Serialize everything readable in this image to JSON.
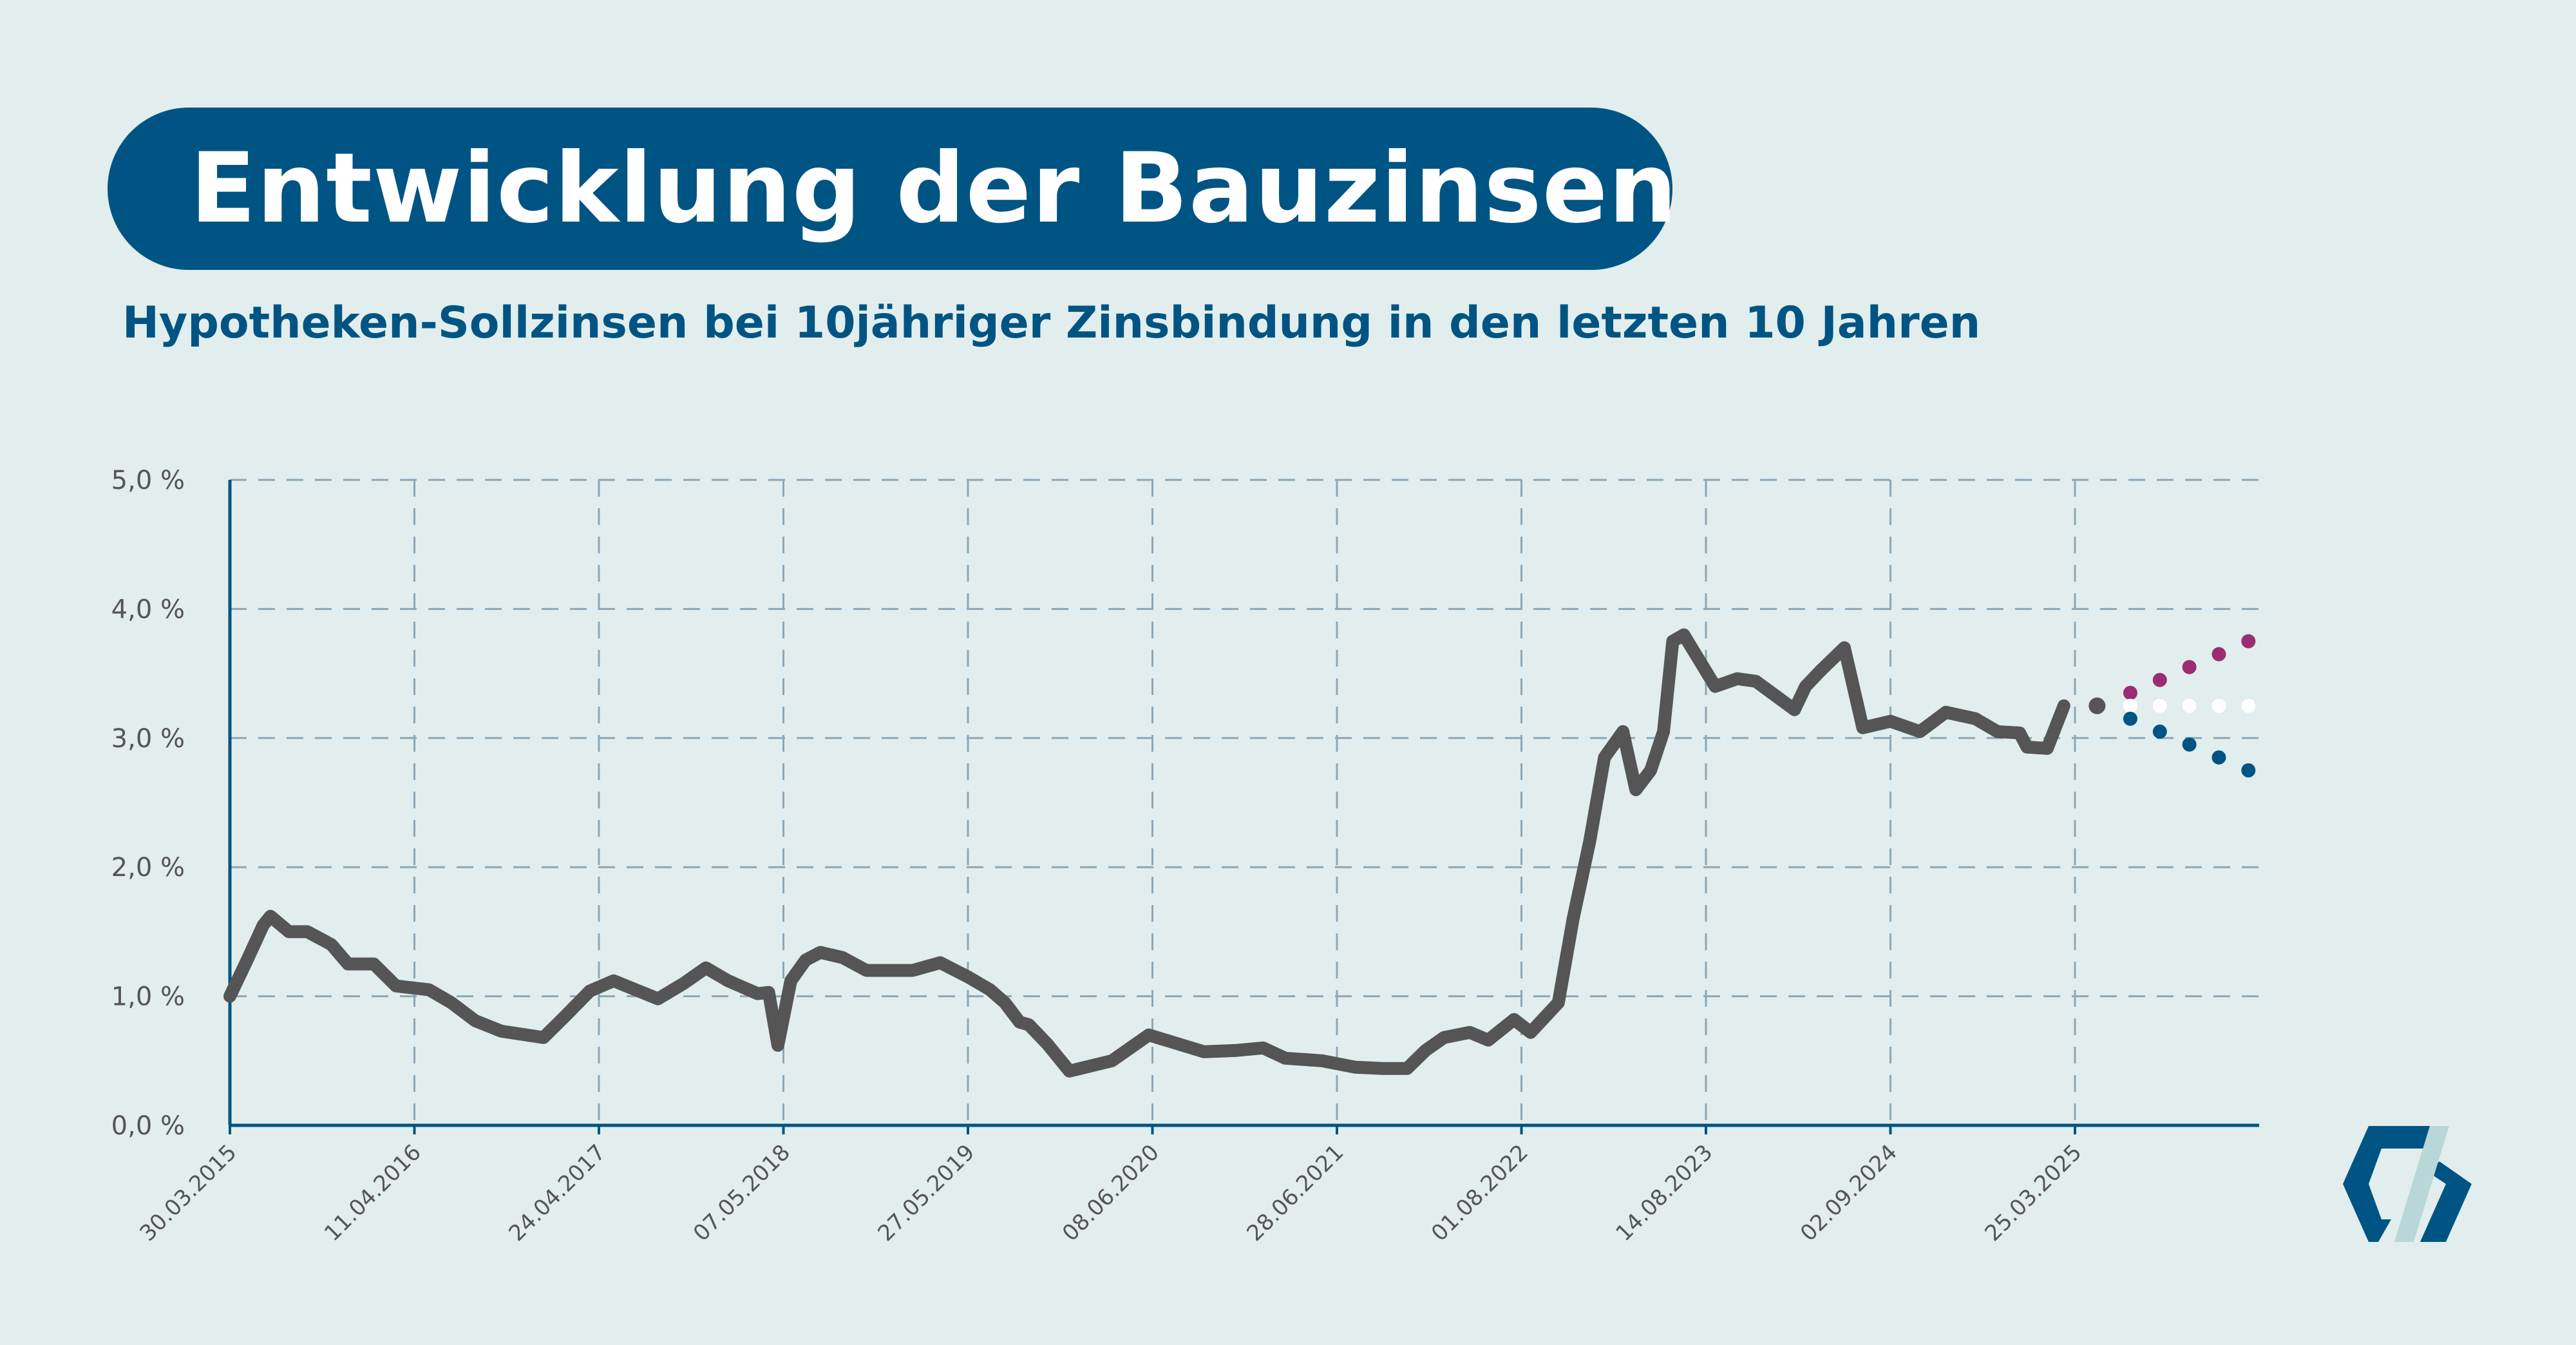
{
  "colors": {
    "background": "#e1eeed",
    "brand_blue": "#005483",
    "line_gray": "#555555",
    "axis": "#005483",
    "grid": "#8ba7b7",
    "tick_text": "#555555",
    "forecast_up": "#9b2d72",
    "forecast_flat": "#ffffff",
    "forecast_down": "#005483",
    "logo_light": "#b9d7d6"
  },
  "header": {
    "title": "Entwicklung der Bauzinsen",
    "subtitle": "Hypotheken-Sollzinsen bei 10jähriger Zinsbindung in den letzten 10 Jahren"
  },
  "logo": {
    "icon": "company-logo-icon"
  },
  "chart_data": {
    "type": "line",
    "title": "Entwicklung der Bauzinsen",
    "subtitle": "Hypotheken-Sollzinsen bei 10jähriger Zinsbindung in den letzten 10 Jahren",
    "xlabel": "",
    "ylabel": "",
    "ylim": [
      0,
      5
    ],
    "yticks": [
      0,
      1,
      2,
      3,
      4,
      5
    ],
    "ytick_labels": [
      "0,0 %",
      "1,0 %",
      "2,0 %",
      "3,0 %",
      "4,0 %",
      "5,0 %"
    ],
    "x_tick_labels": [
      "30.03.2015",
      "11.04.2016",
      "24.04.2017",
      "07.05.2018",
      "27.05.2019",
      "08.06.2020",
      "28.06.2021",
      "01.08.2022",
      "14.08.2023",
      "02.09.2024",
      "25.03.2025"
    ],
    "x_tick_index": [
      0,
      1,
      2,
      3,
      4,
      5,
      6,
      7,
      8,
      9,
      10
    ],
    "xlim": [
      0,
      11
    ],
    "grid": true,
    "series": [
      {
        "role": "history",
        "style": "line",
        "x": [
          0,
          0.1,
          0.18,
          0.22,
          0.32,
          0.42,
          0.55,
          0.64,
          0.78,
          0.9,
          1.08,
          1.2,
          1.33,
          1.47,
          1.7,
          1.82,
          1.95,
          2.08,
          2.2,
          2.32,
          2.46,
          2.58,
          2.7,
          2.86,
          2.92,
          2.97,
          3.04,
          3.12,
          3.2,
          3.32,
          3.45,
          3.58,
          3.7,
          3.85,
          4.0,
          4.12,
          4.2,
          4.28,
          4.33,
          4.43,
          4.55,
          4.78,
          4.88,
          4.98,
          5.28,
          5.45,
          5.6,
          5.72,
          5.92,
          6.1,
          6.25,
          6.38,
          6.48,
          6.58,
          6.72,
          6.82,
          6.96,
          7.05,
          7.2,
          7.28,
          7.37,
          7.45,
          7.55,
          7.62,
          7.7,
          7.77,
          7.82,
          7.88,
          8.05,
          8.17,
          8.27,
          8.48,
          8.54,
          8.62,
          8.75,
          8.85,
          9.0,
          9.16,
          9.3,
          9.46,
          9.58,
          9.7,
          9.74,
          9.85,
          9.94
        ],
        "y": [
          1.0,
          1.3,
          1.55,
          1.62,
          1.5,
          1.5,
          1.4,
          1.25,
          1.25,
          1.08,
          1.05,
          0.95,
          0.81,
          0.73,
          0.68,
          0.85,
          1.04,
          1.12,
          1.05,
          0.98,
          1.1,
          1.22,
          1.12,
          1.02,
          1.03,
          0.62,
          1.12,
          1.28,
          1.34,
          1.3,
          1.2,
          1.2,
          1.2,
          1.26,
          1.15,
          1.05,
          0.95,
          0.8,
          0.78,
          0.63,
          0.42,
          0.5,
          0.6,
          0.7,
          0.57,
          0.58,
          0.6,
          0.52,
          0.5,
          0.45,
          0.44,
          0.44,
          0.58,
          0.68,
          0.72,
          0.66,
          0.82,
          0.72,
          0.95,
          1.6,
          2.2,
          2.85,
          3.05,
          2.6,
          2.75,
          3.05,
          3.75,
          3.8,
          3.4,
          3.46,
          3.44,
          3.22,
          3.4,
          3.52,
          3.7,
          3.08,
          3.13,
          3.05,
          3.2,
          3.15,
          3.05,
          3.04,
          2.93,
          2.92,
          3.25
        ]
      },
      {
        "role": "current",
        "style": "dots",
        "x": [
          10.12
        ],
        "y": [
          3.25
        ]
      },
      {
        "role": "forecast-up",
        "style": "dots",
        "x": [
          10.3,
          10.46,
          10.62,
          10.78,
          10.94
        ],
        "y": [
          3.35,
          3.45,
          3.55,
          3.65,
          3.75
        ]
      },
      {
        "role": "forecast-flat",
        "style": "dots",
        "x": [
          10.3,
          10.46,
          10.62,
          10.78,
          10.94
        ],
        "y": [
          3.25,
          3.25,
          3.25,
          3.25,
          3.25
        ]
      },
      {
        "role": "forecast-down",
        "style": "dots",
        "x": [
          10.3,
          10.46,
          10.62,
          10.78,
          10.94
        ],
        "y": [
          3.15,
          3.05,
          2.95,
          2.85,
          2.75
        ]
      }
    ]
  }
}
